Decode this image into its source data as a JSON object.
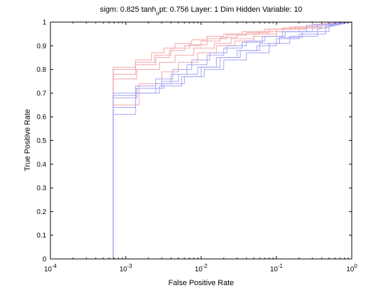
{
  "chart_data": {
    "type": "line",
    "title_parts": [
      "sigm: 0.825  tanh",
      "o",
      "pt: 0.756 Layer: 1  Dim Hidden Variable: 10"
    ],
    "xlabel": "False Positive Rate",
    "ylabel": "True Positive Rate",
    "x_scale": "log",
    "xlim": [
      0.0001,
      1
    ],
    "ylim": [
      0,
      1
    ],
    "grid": false,
    "x_ticks": [
      {
        "value": 0.0001,
        "base": "10",
        "exp": "-4"
      },
      {
        "value": 0.001,
        "base": "10",
        "exp": "-3"
      },
      {
        "value": 0.01,
        "base": "10",
        "exp": "-2"
      },
      {
        "value": 0.1,
        "base": "10",
        "exp": "-1"
      },
      {
        "value": 1,
        "base": "10",
        "exp": "0"
      }
    ],
    "y_ticks": [
      {
        "value": 0,
        "label": "0"
      },
      {
        "value": 0.1,
        "label": "0.1"
      },
      {
        "value": 0.2,
        "label": "0.2"
      },
      {
        "value": 0.3,
        "label": "0.3"
      },
      {
        "value": 0.4,
        "label": "0.4"
      },
      {
        "value": 0.5,
        "label": "0.5"
      },
      {
        "value": 0.6,
        "label": "0.6"
      },
      {
        "value": 0.7,
        "label": "0.7"
      },
      {
        "value": 0.8,
        "label": "0.8"
      },
      {
        "value": 0.9,
        "label": "0.9"
      },
      {
        "value": 1,
        "label": "1"
      }
    ],
    "series": [
      {
        "color": "#f4a3a3",
        "x": [
          0.00068,
          0.00068,
          0.00135,
          0.00135,
          0.0022,
          0.0022,
          0.0032,
          0.0032,
          0.0045,
          0.0045,
          0.0075,
          0.0075,
          0.012,
          0.012,
          0.02,
          0.02,
          0.035,
          0.035,
          0.07,
          0.07,
          0.15,
          0.15,
          0.35,
          0.35,
          1
        ],
        "y": [
          0.0,
          0.81,
          0.81,
          0.84,
          0.84,
          0.87,
          0.87,
          0.89,
          0.89,
          0.91,
          0.91,
          0.925,
          0.925,
          0.94,
          0.94,
          0.95,
          0.95,
          0.96,
          0.96,
          0.97,
          0.97,
          0.98,
          0.98,
          0.99,
          1.0
        ]
      },
      {
        "color": "#f4a3a3",
        "x": [
          0.00068,
          0.00068,
          0.00135,
          0.00135,
          0.0025,
          0.0025,
          0.0038,
          0.0038,
          0.006,
          0.006,
          0.01,
          0.01,
          0.018,
          0.018,
          0.03,
          0.03,
          0.06,
          0.06,
          0.12,
          0.12,
          0.3,
          0.3,
          1
        ],
        "y": [
          0.0,
          0.78,
          0.78,
          0.82,
          0.82,
          0.85,
          0.85,
          0.88,
          0.88,
          0.9,
          0.9,
          0.92,
          0.92,
          0.935,
          0.935,
          0.95,
          0.95,
          0.96,
          0.96,
          0.975,
          0.975,
          0.99,
          1.0
        ]
      },
      {
        "color": "#f4a3a3",
        "x": [
          0.00068,
          0.00068,
          0.0014,
          0.0014,
          0.0028,
          0.0028,
          0.0045,
          0.0045,
          0.008,
          0.008,
          0.015,
          0.015,
          0.025,
          0.025,
          0.05,
          0.05,
          0.1,
          0.1,
          0.25,
          0.25,
          1
        ],
        "y": [
          0.0,
          0.76,
          0.76,
          0.8,
          0.8,
          0.83,
          0.83,
          0.86,
          0.86,
          0.89,
          0.89,
          0.91,
          0.91,
          0.93,
          0.93,
          0.95,
          0.95,
          0.97,
          0.97,
          0.985,
          1.0
        ]
      },
      {
        "color": "#f4a3a3",
        "x": [
          0.00068,
          0.00068,
          0.0015,
          0.0015,
          0.003,
          0.003,
          0.005,
          0.005,
          0.009,
          0.009,
          0.016,
          0.016,
          0.028,
          0.028,
          0.05,
          0.05,
          0.1,
          0.1,
          0.2,
          0.2,
          0.45,
          0.45,
          1
        ],
        "y": [
          0.0,
          0.65,
          0.65,
          0.74,
          0.74,
          0.79,
          0.79,
          0.83,
          0.83,
          0.87,
          0.87,
          0.9,
          0.9,
          0.92,
          0.92,
          0.94,
          0.94,
          0.96,
          0.96,
          0.975,
          0.975,
          0.99,
          1.0
        ]
      },
      {
        "color": "#f4a3a3",
        "x": [
          0.00068,
          0.00068,
          0.00135,
          0.00135,
          0.0024,
          0.0024,
          0.004,
          0.004,
          0.007,
          0.007,
          0.012,
          0.012,
          0.022,
          0.022,
          0.04,
          0.04,
          0.08,
          0.08,
          0.18,
          0.18,
          0.4,
          0.4,
          1
        ],
        "y": [
          0.0,
          0.8,
          0.8,
          0.83,
          0.83,
          0.86,
          0.86,
          0.89,
          0.89,
          0.905,
          0.905,
          0.93,
          0.93,
          0.945,
          0.945,
          0.955,
          0.955,
          0.97,
          0.97,
          0.98,
          0.98,
          0.99,
          1.0
        ]
      },
      {
        "color": "#a3a3f4",
        "x": [
          0.00068,
          0.00068,
          0.00135,
          0.00135,
          0.0025,
          0.0025,
          0.0042,
          0.0042,
          0.0075,
          0.0075,
          0.013,
          0.013,
          0.022,
          0.022,
          0.04,
          0.04,
          0.07,
          0.07,
          0.13,
          0.13,
          0.3,
          0.3,
          1
        ],
        "y": [
          0.05,
          0.7,
          0.7,
          0.73,
          0.73,
          0.76,
          0.76,
          0.8,
          0.8,
          0.84,
          0.84,
          0.87,
          0.87,
          0.9,
          0.9,
          0.92,
          0.92,
          0.94,
          0.94,
          0.96,
          0.96,
          0.98,
          1.0
        ]
      },
      {
        "color": "#a3a3f4",
        "x": [
          0.00068,
          0.00068,
          0.00135,
          0.00135,
          0.003,
          0.003,
          0.005,
          0.005,
          0.009,
          0.009,
          0.016,
          0.016,
          0.03,
          0.03,
          0.055,
          0.055,
          0.1,
          0.1,
          0.2,
          0.2,
          0.45,
          0.45,
          1
        ],
        "y": [
          0.0,
          0.69,
          0.69,
          0.72,
          0.72,
          0.75,
          0.75,
          0.78,
          0.78,
          0.81,
          0.81,
          0.85,
          0.85,
          0.88,
          0.88,
          0.9,
          0.9,
          0.93,
          0.93,
          0.95,
          0.95,
          0.98,
          1.0
        ]
      },
      {
        "color": "#a3a3f4",
        "x": [
          0.00068,
          0.00068,
          0.00135,
          0.00135,
          0.0025,
          0.0025,
          0.004,
          0.004,
          0.0065,
          0.0065,
          0.012,
          0.012,
          0.02,
          0.02,
          0.035,
          0.035,
          0.065,
          0.065,
          0.12,
          0.12,
          0.25,
          0.25,
          1
        ],
        "y": [
          0.0,
          0.61,
          0.61,
          0.7,
          0.7,
          0.74,
          0.74,
          0.78,
          0.78,
          0.82,
          0.82,
          0.86,
          0.86,
          0.89,
          0.89,
          0.915,
          0.915,
          0.94,
          0.94,
          0.96,
          0.96,
          0.985,
          1.0
        ]
      },
      {
        "color": "#a3a3f4",
        "x": [
          0.00068,
          0.00068,
          0.0014,
          0.0014,
          0.0032,
          0.0032,
          0.006,
          0.006,
          0.011,
          0.011,
          0.02,
          0.02,
          0.04,
          0.04,
          0.08,
          0.08,
          0.15,
          0.15,
          0.35,
          0.35,
          1
        ],
        "y": [
          0.0,
          0.68,
          0.68,
          0.72,
          0.72,
          0.74,
          0.74,
          0.77,
          0.77,
          0.8,
          0.8,
          0.84,
          0.84,
          0.87,
          0.87,
          0.91,
          0.91,
          0.94,
          0.94,
          0.97,
          1.0
        ]
      },
      {
        "color": "#a3a3f4",
        "x": [
          0.00068,
          0.00068,
          0.00135,
          0.00135,
          0.0028,
          0.0028,
          0.0055,
          0.0055,
          0.01,
          0.01,
          0.018,
          0.018,
          0.033,
          0.033,
          0.06,
          0.06,
          0.11,
          0.11,
          0.22,
          0.22,
          0.5,
          0.5,
          1
        ],
        "y": [
          0.0,
          0.64,
          0.64,
          0.7,
          0.7,
          0.73,
          0.73,
          0.77,
          0.77,
          0.81,
          0.81,
          0.85,
          0.85,
          0.88,
          0.88,
          0.91,
          0.91,
          0.935,
          0.935,
          0.96,
          0.96,
          0.985,
          1.0
        ]
      }
    ]
  }
}
